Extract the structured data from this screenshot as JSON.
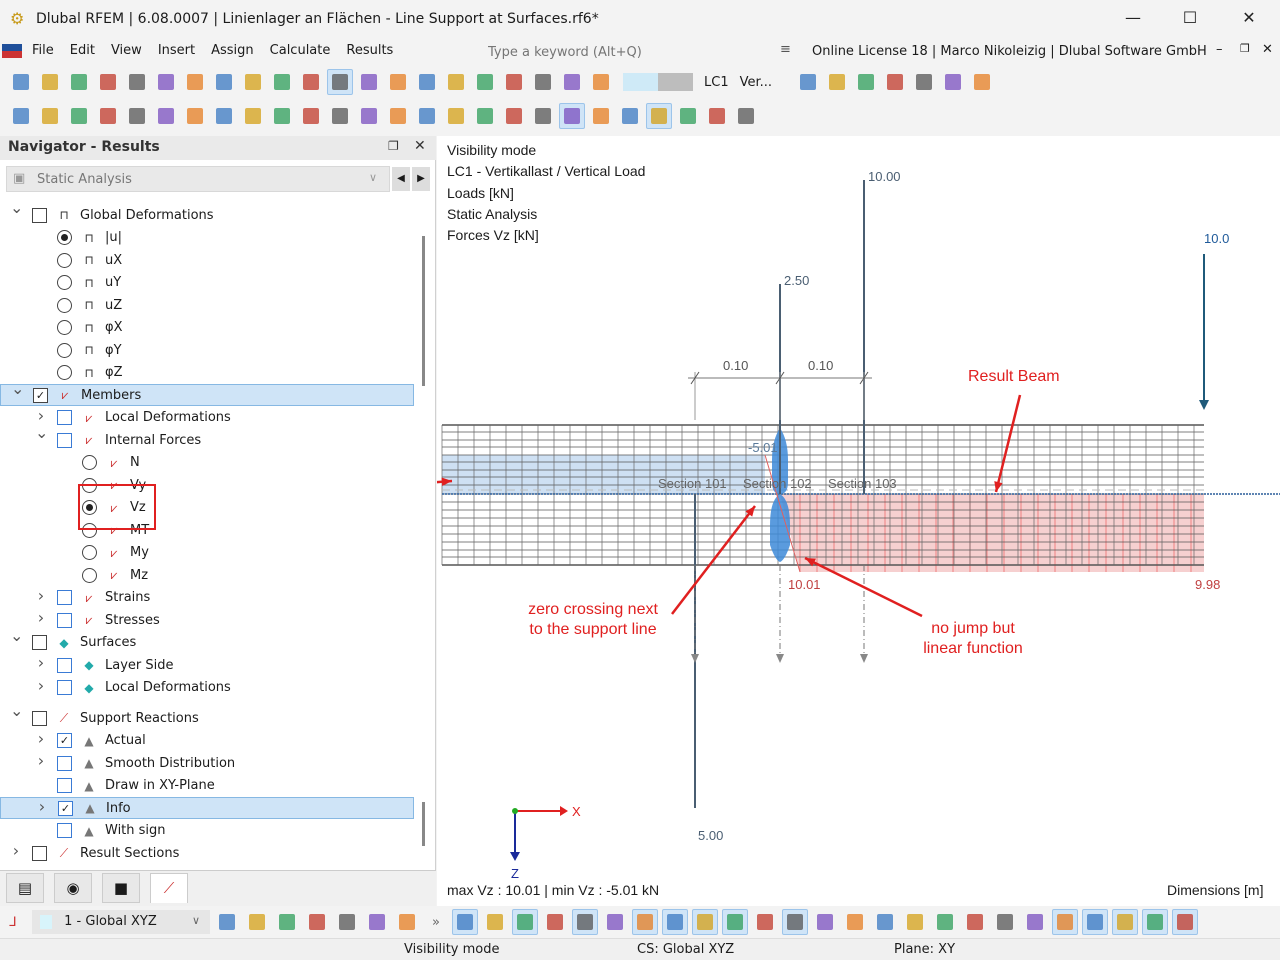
{
  "window": {
    "title": "Dlubal RFEM | 6.08.0007 | Linienlager an Flächen - Line Support at Surfaces.rf6*",
    "minimize": "—",
    "maximize": "☐",
    "close": "✕"
  },
  "menu": {
    "items": [
      "File",
      "Edit",
      "View",
      "Insert",
      "Assign",
      "Calculate",
      "Results"
    ],
    "more": "»",
    "search_placeholder": "Type a keyword (Alt+Q)",
    "license": "Online License 18 | Marco Nikoleizig | Dlubal Software GmbH"
  },
  "toolbar1": {
    "icons": [
      "new-icon",
      "open-icon",
      "dlubal-icon",
      "share-icon",
      "model-icon",
      "save-icon",
      "print-icon",
      "report-icon",
      "document-icon",
      "undo-icon",
      "redo-icon",
      "view-front-icon",
      "table-icon",
      "list-icon",
      "script-icon",
      "calc-icon",
      "data-icon",
      "render-icon",
      "load-icon",
      "result-icon",
      "lc-color-icon"
    ],
    "lc_label": "LC1",
    "lc_name": "Ver...",
    "more_icons": [
      "prev-icon",
      "next-icon",
      "delete-result-icon",
      "results-icon",
      "xxx-icon",
      "info-icon",
      "close-result-icon"
    ]
  },
  "toolbar2": {
    "icons": [
      "node-icon",
      "line-icon",
      "member-icon",
      "surface-icon",
      "support-icon",
      "hinge-icon",
      "load-node-icon",
      "load-line-icon",
      "solid-icon",
      "section-icon",
      "cube-icon",
      "opening-icon",
      "dimension-icon",
      "arrow-icon",
      "grid-icon",
      "filter-icon",
      "guide-icon",
      "frame-icon",
      "film-icon",
      "result-diagram-icon",
      "surface-result-icon",
      "box-icon",
      "reaction-icon",
      "line-result-icon",
      "settings-icon",
      "table-view-icon"
    ]
  },
  "navigator": {
    "title": "Navigator - Results",
    "analysis": "Static Analysis",
    "items": [
      {
        "level": 0,
        "exp": "v",
        "ctl": "chk",
        "checked": false,
        "icon": "deformation",
        "label": "Global Deformations"
      },
      {
        "level": 1,
        "ctl": "rad",
        "checked": true,
        "icon": "deformation",
        "label": "|u|"
      },
      {
        "level": 1,
        "ctl": "rad",
        "icon": "deformation",
        "label": "uX"
      },
      {
        "level": 1,
        "ctl": "rad",
        "icon": "deformation",
        "label": "uY"
      },
      {
        "level": 1,
        "ctl": "rad",
        "icon": "deformation",
        "label": "uZ"
      },
      {
        "level": 1,
        "ctl": "rad",
        "icon": "deformation",
        "label": "φX"
      },
      {
        "level": 1,
        "ctl": "rad",
        "icon": "deformation",
        "label": "φY"
      },
      {
        "level": 1,
        "ctl": "rad",
        "icon": "deformation",
        "label": "φZ"
      },
      {
        "level": 0,
        "exp": "v",
        "ctl": "chk",
        "checked": true,
        "icon": "member",
        "label": "Members",
        "selected": true
      },
      {
        "level": 1,
        "exp": ">",
        "ctl": "chk",
        "icon": "member",
        "label": "Local Deformations"
      },
      {
        "level": 1,
        "exp": "v",
        "ctl": "chk",
        "icon": "member",
        "label": "Internal Forces"
      },
      {
        "level": 2,
        "ctl": "rad",
        "icon": "member",
        "label": "N"
      },
      {
        "level": 2,
        "ctl": "rad",
        "icon": "member",
        "label": "Vy"
      },
      {
        "level": 2,
        "ctl": "rad",
        "checked": true,
        "icon": "member",
        "label": "Vz"
      },
      {
        "level": 2,
        "ctl": "rad",
        "icon": "member",
        "label": "MT"
      },
      {
        "level": 2,
        "ctl": "rad",
        "icon": "member",
        "label": "My"
      },
      {
        "level": 2,
        "ctl": "rad",
        "icon": "member",
        "label": "Mz"
      },
      {
        "level": 1,
        "exp": ">",
        "ctl": "chk",
        "icon": "member",
        "label": "Strains"
      },
      {
        "level": 1,
        "exp": ">",
        "ctl": "chk",
        "icon": "member",
        "label": "Stresses"
      },
      {
        "level": 0,
        "exp": "v",
        "ctl": "chk",
        "icon": "surface",
        "label": "Surfaces"
      },
      {
        "level": 1,
        "exp": ">",
        "ctl": "chk",
        "icon": "surface",
        "label": "Layer Side"
      },
      {
        "level": 1,
        "exp": ">",
        "ctl": "chk",
        "icon": "surface",
        "label": "Local Deformations"
      },
      {
        "level": 0,
        "exp": "v",
        "ctl": "chk",
        "icon": "reaction",
        "label": "Support Reactions",
        "gap": true
      },
      {
        "level": 1,
        "exp": ">",
        "ctl": "chk",
        "checked": true,
        "icon": "support",
        "label": "Actual"
      },
      {
        "level": 1,
        "exp": ">",
        "ctl": "chk",
        "icon": "support",
        "label": "Smooth Distribution"
      },
      {
        "level": 1,
        "ctl": "chk",
        "icon": "support",
        "label": "Draw in XY-Plane"
      },
      {
        "level": 1,
        "exp": ">",
        "ctl": "chk",
        "checked": true,
        "icon": "support",
        "label": "Info",
        "selected": true
      },
      {
        "level": 1,
        "ctl": "chk",
        "icon": "support",
        "label": "With sign"
      },
      {
        "level": 0,
        "exp": ">",
        "ctl": "chk",
        "icon": "reaction",
        "label": "Result Sections"
      }
    ],
    "tabs": [
      "data-icon",
      "eye-icon",
      "camera-icon",
      "result-icon"
    ]
  },
  "view": {
    "info": [
      "Visibility mode",
      "LC1 - Vertikallast / Vertical Load",
      "Loads [kN]",
      "Static Analysis",
      "Forces Vz [kN]"
    ],
    "labels": {
      "load_top": "10.00",
      "load_mid": "2.50",
      "load_right": "10.0",
      "load_bottom": "5.00",
      "dim_left": "0.10",
      "dim_right": "0.10",
      "val_min": "-5.01",
      "val_max": "10.01",
      "val_end": "9.98",
      "sec101": "Section 101",
      "sec102": "Section 102",
      "sec103": "Section 103",
      "axis_x": "X",
      "axis_z": "Z"
    },
    "annotations": {
      "result_beam": "Result Beam",
      "zero_crossing": "zero crossing next to the support line",
      "no_jump": "no jump but linear function"
    },
    "summary": "max Vz : 10.01 | min Vz : -5.01 kN",
    "dimensions": "Dimensions [m]",
    "colors": {
      "negative": "#b9d3ee",
      "positive": "#f4c4c4",
      "annotation": "#e02020",
      "load": "#1f5a7a"
    }
  },
  "bottom": {
    "cs": "1 - Global XYZ",
    "more": "»"
  },
  "status": {
    "visibility": "Visibility mode",
    "cs": "CS: Global XYZ",
    "plane": "Plane: XY"
  }
}
